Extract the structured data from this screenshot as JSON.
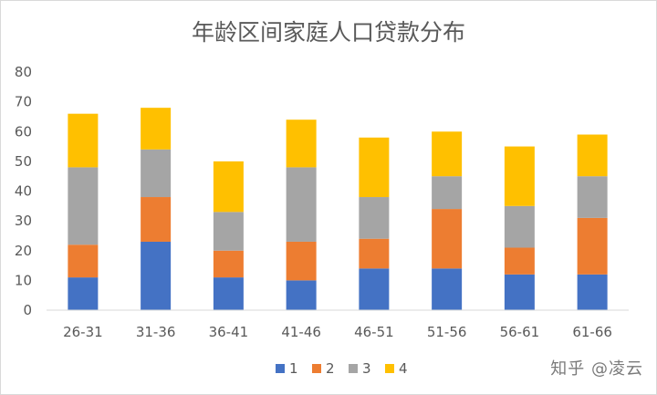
{
  "chart_data": {
    "type": "bar",
    "stacked": true,
    "title": "年龄区间家庭人口贷款分布",
    "categories": [
      "26-31",
      "31-36",
      "36-41",
      "41-46",
      "46-51",
      "51-56",
      "56-61",
      "61-66"
    ],
    "series": [
      {
        "name": "1",
        "color": "#4472C4",
        "values": [
          11,
          23,
          11,
          10,
          14,
          14,
          12,
          12
        ]
      },
      {
        "name": "2",
        "color": "#ED7D31",
        "values": [
          11,
          15,
          9,
          13,
          10,
          20,
          9,
          19
        ]
      },
      {
        "name": "3",
        "color": "#A5A5A5",
        "values": [
          26,
          16,
          13,
          25,
          14,
          11,
          14,
          14
        ]
      },
      {
        "name": "4",
        "color": "#FFC000",
        "values": [
          18,
          14,
          17,
          16,
          20,
          15,
          20,
          14
        ]
      }
    ],
    "ylim": [
      0,
      80
    ],
    "yticks": [
      0,
      10,
      20,
      30,
      40,
      50,
      60,
      70,
      80
    ],
    "grid": false,
    "legend": "bottom"
  },
  "watermark": "知乎 @凌云"
}
